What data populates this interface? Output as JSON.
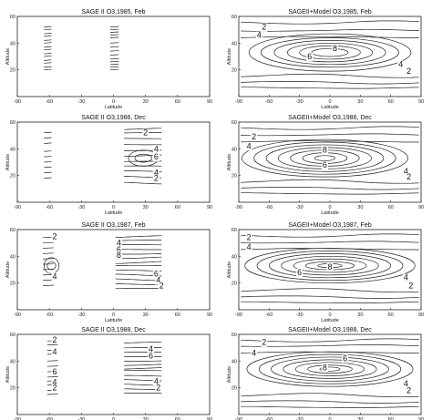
{
  "chart_data": [
    {
      "type": "line",
      "title": "SAGE II O3,1985, Feb",
      "xlabel": "Latitude",
      "ylabel": "Altitude",
      "xlim": [
        -90,
        90
      ],
      "ylim": [
        0,
        60
      ],
      "xticks": [
        "-90",
        "-60",
        "-30",
        "0",
        "30",
        "60",
        "90"
      ],
      "yticks": [
        "20",
        "40",
        "60"
      ],
      "contour_labels": []
    },
    {
      "type": "line",
      "title": "SAGEII+Model O3,1985, Feb",
      "xlabel": "Latitude",
      "ylabel": "Altitude",
      "xlim": [
        -90,
        90
      ],
      "ylim": [
        0,
        60
      ],
      "xticks": [
        "-90",
        "-60",
        "-30",
        "0",
        "30",
        "60",
        "90"
      ],
      "yticks": [
        "20",
        "40",
        "60"
      ],
      "contour_labels": [
        {
          "text": "2",
          "x": -65,
          "y": 50
        },
        {
          "text": "4",
          "x": -70,
          "y": 44
        },
        {
          "text": "6",
          "x": -20,
          "y": 28
        },
        {
          "text": "8",
          "x": 5,
          "y": 34
        },
        {
          "text": "4",
          "x": 70,
          "y": 22
        },
        {
          "text": "2",
          "x": 78,
          "y": 17
        }
      ]
    },
    {
      "type": "line",
      "title": "SAGE II O3,1986, Dec",
      "xlabel": "Latitude",
      "ylabel": "Altitude",
      "xlim": [
        -90,
        90
      ],
      "ylim": [
        0,
        60
      ],
      "xticks": [
        "-90",
        "-60",
        "-30",
        "0",
        "30",
        "60",
        "90"
      ],
      "yticks": [
        "20",
        "40",
        "60"
      ],
      "contour_labels": [
        {
          "text": "2",
          "x": 30,
          "y": 50
        },
        {
          "text": "4",
          "x": 40,
          "y": 38
        },
        {
          "text": "6",
          "x": 40,
          "y": 32
        },
        {
          "text": "4",
          "x": 40,
          "y": 20
        },
        {
          "text": "2",
          "x": 40,
          "y": 16
        }
      ]
    },
    {
      "type": "line",
      "title": "SAGEII+Model O3,1986, Dec",
      "xlabel": "Latitude",
      "ylabel": "Altitude",
      "xlim": [
        -90,
        90
      ],
      "ylim": [
        0,
        60
      ],
      "xticks": [
        "-90",
        "-60",
        "-30",
        "0",
        "30",
        "60",
        "90"
      ],
      "yticks": [
        "20",
        "40",
        "60"
      ],
      "contour_labels": [
        {
          "text": "2",
          "x": -75,
          "y": 47
        },
        {
          "text": "4",
          "x": -80,
          "y": 40
        },
        {
          "text": "8",
          "x": -5,
          "y": 37
        },
        {
          "text": "6",
          "x": -5,
          "y": 26
        },
        {
          "text": "4",
          "x": 75,
          "y": 21
        },
        {
          "text": "2",
          "x": 78,
          "y": 17
        }
      ]
    },
    {
      "type": "line",
      "title": "SAGE II O3,1987, Feb",
      "xlabel": "Latitude",
      "ylabel": "Altitude",
      "xlim": [
        -90,
        90
      ],
      "ylim": [
        0,
        60
      ],
      "xticks": [
        "-90",
        "-60",
        "-30",
        "0",
        "30",
        "60",
        "90"
      ],
      "yticks": [
        "20",
        "40",
        "60"
      ],
      "contour_labels": [
        {
          "text": "2",
          "x": -55,
          "y": 53
        },
        {
          "text": "4",
          "x": 5,
          "y": 48
        },
        {
          "text": "6",
          "x": 5,
          "y": 43
        },
        {
          "text": "8",
          "x": 5,
          "y": 39
        },
        {
          "text": "4",
          "x": -55,
          "y": 23
        },
        {
          "text": "6",
          "x": 40,
          "y": 25
        },
        {
          "text": "4",
          "x": 42,
          "y": 20
        },
        {
          "text": "2",
          "x": 45,
          "y": 16
        }
      ]
    },
    {
      "type": "line",
      "title": "SAGEII+Model O3,1987, Feb",
      "xlabel": "Latitude",
      "ylabel": "Altitude",
      "xlim": [
        -90,
        90
      ],
      "ylim": [
        0,
        60
      ],
      "xticks": [
        "-90",
        "-60",
        "-30",
        "0",
        "30",
        "60",
        "90"
      ],
      "yticks": [
        "20",
        "40",
        "60"
      ],
      "contour_labels": [
        {
          "text": "2",
          "x": -80,
          "y": 52
        },
        {
          "text": "4",
          "x": -80,
          "y": 45
        },
        {
          "text": "6",
          "x": -30,
          "y": 26
        },
        {
          "text": "8",
          "x": 0,
          "y": 30
        },
        {
          "text": "4",
          "x": 75,
          "y": 22
        },
        {
          "text": "2",
          "x": 80,
          "y": 16
        }
      ]
    },
    {
      "type": "line",
      "title": "SAGE II O3,1988, Dec",
      "xlabel": "Latitude",
      "ylabel": "Altitude",
      "xlim": [
        -90,
        90
      ],
      "ylim": [
        0,
        60
      ],
      "xticks": [
        "-90",
        "-60",
        "-30",
        "0",
        "30",
        "60",
        "90"
      ],
      "yticks": [
        "20",
        "40",
        "60"
      ],
      "contour_labels": [
        {
          "text": "2",
          "x": -55,
          "y": 54
        },
        {
          "text": "4",
          "x": -55,
          "y": 45
        },
        {
          "text": "6",
          "x": -55,
          "y": 30
        },
        {
          "text": "4",
          "x": -55,
          "y": 22
        },
        {
          "text": "2",
          "x": -55,
          "y": 18
        },
        {
          "text": "4",
          "x": 35,
          "y": 47
        },
        {
          "text": "6",
          "x": 35,
          "y": 42
        },
        {
          "text": "4",
          "x": 40,
          "y": 23
        },
        {
          "text": "2",
          "x": 42,
          "y": 18
        }
      ]
    },
    {
      "type": "line",
      "title": "SAGEII+Model O3,1988, Dec",
      "xlabel": "Latitude",
      "ylabel": "Altitude",
      "xlim": [
        -90,
        90
      ],
      "ylim": [
        0,
        60
      ],
      "xticks": [
        "-90",
        "-60",
        "-30",
        "0",
        "30",
        "60",
        "90"
      ],
      "yticks": [
        "20",
        "40",
        "60"
      ],
      "contour_labels": [
        {
          "text": "2",
          "x": -65,
          "y": 52
        },
        {
          "text": "4",
          "x": -75,
          "y": 44
        },
        {
          "text": "6",
          "x": 15,
          "y": 40
        },
        {
          "text": "8",
          "x": -5,
          "y": 33
        },
        {
          "text": "4",
          "x": 75,
          "y": 21
        },
        {
          "text": "2",
          "x": 78,
          "y": 16
        }
      ]
    }
  ]
}
